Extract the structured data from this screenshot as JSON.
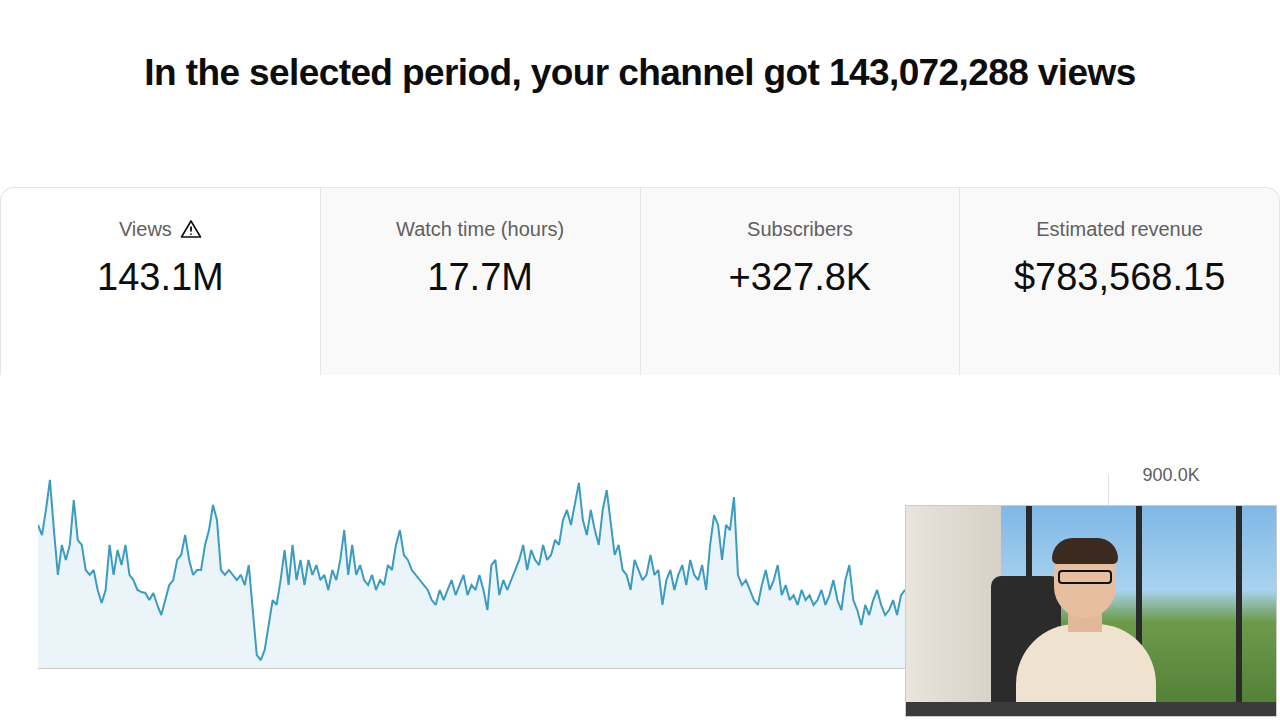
{
  "heading": "In the selected period, your channel got 143,072,288 views",
  "metrics": [
    {
      "label": "Views",
      "value": "143.1M"
    },
    {
      "label": "Watch time (hours)",
      "value": "17.7M"
    },
    {
      "label": "Subscribers",
      "value": "+327.8K"
    },
    {
      "label": "Estimated revenue",
      "value": "$783,568.15"
    }
  ],
  "chart_data": {
    "type": "line",
    "color": "#3b9bc1",
    "grid": true,
    "tick_labels": "y",
    "ylim": [
      0,
      900000
    ],
    "yticks": [
      {
        "value": 900000,
        "label": "900.0K"
      }
    ],
    "values": [
      667000,
      620000,
      737000,
      877000,
      643000,
      434000,
      574000,
      504000,
      574000,
      783000,
      597000,
      574000,
      457000,
      434000,
      457000,
      364000,
      303000,
      364000,
      574000,
      434000,
      550000,
      480000,
      574000,
      434000,
      410000,
      364000,
      354000,
      350000,
      317000,
      350000,
      294000,
      247000,
      317000,
      387000,
      410000,
      504000,
      527000,
      620000,
      504000,
      434000,
      457000,
      457000,
      574000,
      643000,
      760000,
      690000,
      457000,
      434000,
      457000,
      434000,
      410000,
      434000,
      387000,
      480000,
      270000,
      61000,
      37000,
      84000,
      200000,
      317000,
      294000,
      410000,
      550000,
      387000,
      574000,
      410000,
      504000,
      387000,
      504000,
      434000,
      480000,
      410000,
      434000,
      364000,
      457000,
      410000,
      504000,
      643000,
      434000,
      574000,
      434000,
      480000,
      410000,
      387000,
      434000,
      364000,
      410000,
      387000,
      480000,
      457000,
      574000,
      643000,
      527000,
      504000,
      457000,
      434000,
      410000,
      387000,
      364000,
      317000,
      294000,
      364000,
      317000,
      364000,
      410000,
      340000,
      387000,
      434000,
      340000,
      387000,
      364000,
      434000,
      364000,
      270000,
      480000,
      504000,
      340000,
      410000,
      364000,
      410000,
      457000,
      504000,
      574000,
      457000,
      550000,
      504000,
      480000,
      574000,
      504000,
      527000,
      597000,
      574000,
      690000,
      737000,
      667000,
      760000,
      863000,
      690000,
      620000,
      737000,
      643000,
      574000,
      737000,
      830000,
      690000,
      527000,
      574000,
      457000,
      434000,
      364000,
      504000,
      457000,
      410000,
      434000,
      527000,
      434000,
      457000,
      294000,
      410000,
      457000,
      364000,
      434000,
      480000,
      387000,
      504000,
      434000,
      410000,
      480000,
      364000,
      574000,
      713000,
      667000,
      504000,
      667000,
      643000,
      797000,
      434000,
      387000,
      410000,
      364000,
      317000,
      294000,
      387000,
      457000,
      364000,
      410000,
      480000,
      340000,
      387000,
      317000,
      340000,
      294000,
      364000,
      317000,
      340000,
      294000,
      317000,
      364000,
      294000,
      340000,
      410000,
      317000,
      270000,
      410000,
      480000,
      317000,
      270000,
      200000,
      294000,
      247000,
      317000,
      364000,
      294000,
      247000,
      270000,
      317000,
      247000,
      340000,
      364000
    ]
  }
}
